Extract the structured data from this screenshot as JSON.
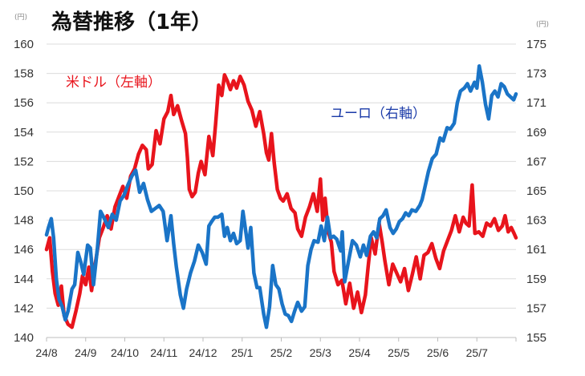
{
  "chart_data": {
    "type": "line",
    "title": "為替推移（1年）",
    "left_unit": "(円)",
    "right_unit": "(円)",
    "y_left": {
      "ylim": [
        140,
        160
      ],
      "ticks": [
        140,
        142,
        144,
        146,
        148,
        150,
        152,
        154,
        156,
        158,
        160
      ]
    },
    "y_right": {
      "ylim": [
        155,
        175
      ],
      "ticks": [
        155,
        157,
        159,
        161,
        163,
        165,
        167,
        169,
        171,
        173,
        175
      ]
    },
    "x_ticks": [
      "24/8",
      "24/9",
      "24/10",
      "24/11",
      "24/12",
      "25/1",
      "25/2",
      "25/3",
      "25/4",
      "25/5",
      "25/6",
      "25/7"
    ],
    "grid": "horizontal",
    "series": [
      {
        "name": "米ドル（左軸）",
        "axis": "left",
        "color": "#e8141c",
        "points": [
          [
            0.0,
            146.0
          ],
          [
            0.08,
            146.8
          ],
          [
            0.15,
            144.5
          ],
          [
            0.22,
            143.0
          ],
          [
            0.3,
            142.2
          ],
          [
            0.38,
            143.5
          ],
          [
            0.45,
            141.5
          ],
          [
            0.55,
            140.9
          ],
          [
            0.65,
            140.7
          ],
          [
            0.75,
            141.8
          ],
          [
            0.85,
            143.0
          ],
          [
            0.92,
            144.2
          ],
          [
            1.0,
            143.6
          ],
          [
            1.08,
            144.8
          ],
          [
            1.15,
            143.2
          ],
          [
            1.25,
            145.1
          ],
          [
            1.35,
            146.8
          ],
          [
            1.45,
            147.5
          ],
          [
            1.55,
            148.3
          ],
          [
            1.65,
            147.4
          ],
          [
            1.75,
            148.9
          ],
          [
            1.85,
            149.6
          ],
          [
            1.95,
            150.3
          ],
          [
            2.05,
            149.5
          ],
          [
            2.15,
            151.0
          ],
          [
            2.25,
            151.5
          ],
          [
            2.35,
            152.5
          ],
          [
            2.45,
            153.1
          ],
          [
            2.55,
            152.8
          ],
          [
            2.6,
            151.5
          ],
          [
            2.7,
            151.8
          ],
          [
            2.8,
            154.1
          ],
          [
            2.9,
            153.2
          ],
          [
            3.0,
            154.9
          ],
          [
            3.1,
            155.4
          ],
          [
            3.18,
            156.5
          ],
          [
            3.25,
            155.2
          ],
          [
            3.35,
            155.8
          ],
          [
            3.45,
            154.8
          ],
          [
            3.55,
            153.9
          ],
          [
            3.6,
            152.3
          ],
          [
            3.65,
            150.1
          ],
          [
            3.72,
            149.6
          ],
          [
            3.8,
            149.9
          ],
          [
            3.88,
            151.2
          ],
          [
            3.95,
            152.0
          ],
          [
            4.05,
            151.1
          ],
          [
            4.15,
            153.7
          ],
          [
            4.25,
            152.4
          ],
          [
            4.32,
            154.5
          ],
          [
            4.4,
            157.2
          ],
          [
            4.48,
            156.5
          ],
          [
            4.55,
            157.9
          ],
          [
            4.62,
            157.5
          ],
          [
            4.7,
            156.9
          ],
          [
            4.78,
            157.5
          ],
          [
            4.86,
            157.0
          ],
          [
            4.95,
            157.8
          ],
          [
            5.05,
            157.2
          ],
          [
            5.15,
            156.1
          ],
          [
            5.25,
            155.5
          ],
          [
            5.35,
            154.4
          ],
          [
            5.45,
            155.4
          ],
          [
            5.55,
            153.9
          ],
          [
            5.62,
            152.6
          ],
          [
            5.68,
            152.1
          ],
          [
            5.75,
            153.9
          ],
          [
            5.82,
            151.9
          ],
          [
            5.9,
            150.1
          ],
          [
            5.98,
            149.5
          ],
          [
            6.05,
            149.3
          ],
          [
            6.15,
            149.8
          ],
          [
            6.25,
            148.8
          ],
          [
            6.35,
            148.5
          ],
          [
            6.42,
            147.4
          ],
          [
            6.52,
            146.9
          ],
          [
            6.62,
            148.2
          ],
          [
            6.72,
            148.9
          ],
          [
            6.82,
            149.8
          ],
          [
            6.92,
            148.6
          ],
          [
            7.0,
            150.8
          ],
          [
            7.06,
            148.0
          ],
          [
            7.12,
            149.5
          ],
          [
            7.2,
            147.2
          ],
          [
            7.28,
            146.5
          ],
          [
            7.35,
            144.5
          ],
          [
            7.45,
            143.6
          ],
          [
            7.55,
            143.9
          ],
          [
            7.65,
            142.3
          ],
          [
            7.75,
            143.7
          ],
          [
            7.85,
            142.0
          ],
          [
            7.95,
            143.1
          ],
          [
            8.05,
            141.7
          ],
          [
            8.15,
            142.9
          ],
          [
            8.22,
            144.8
          ],
          [
            8.3,
            146.8
          ],
          [
            8.4,
            145.7
          ],
          [
            8.5,
            147.8
          ],
          [
            8.58,
            146.5
          ],
          [
            8.65,
            145.2
          ],
          [
            8.75,
            143.6
          ],
          [
            8.85,
            145.0
          ],
          [
            8.95,
            144.4
          ],
          [
            9.05,
            143.8
          ],
          [
            9.15,
            144.7
          ],
          [
            9.25,
            143.2
          ],
          [
            9.35,
            144.3
          ],
          [
            9.45,
            145.5
          ],
          [
            9.55,
            144.0
          ],
          [
            9.65,
            145.6
          ],
          [
            9.75,
            145.8
          ],
          [
            9.85,
            146.4
          ],
          [
            9.95,
            145.4
          ],
          [
            10.05,
            144.7
          ],
          [
            10.15,
            145.9
          ],
          [
            10.25,
            146.6
          ],
          [
            10.35,
            147.3
          ],
          [
            10.45,
            148.3
          ],
          [
            10.55,
            147.2
          ],
          [
            10.65,
            148.2
          ],
          [
            10.72,
            147.8
          ],
          [
            10.8,
            147.6
          ],
          [
            10.88,
            150.4
          ],
          [
            10.95,
            147.1
          ],
          [
            11.05,
            147.2
          ],
          [
            11.15,
            146.9
          ],
          [
            11.25,
            147.8
          ],
          [
            11.35,
            147.6
          ],
          [
            11.45,
            148.1
          ],
          [
            11.55,
            147.3
          ],
          [
            11.65,
            147.6
          ],
          [
            11.72,
            148.3
          ],
          [
            11.8,
            147.2
          ],
          [
            11.88,
            147.5
          ],
          [
            11.95,
            147.1
          ],
          [
            12.0,
            146.8
          ]
        ]
      },
      {
        "name": "ユーロ（右軸）",
        "axis": "right",
        "color": "#1a74c7",
        "points": [
          [
            0.0,
            162.0
          ],
          [
            0.05,
            162.5
          ],
          [
            0.12,
            163.1
          ],
          [
            0.18,
            161.8
          ],
          [
            0.25,
            159.0
          ],
          [
            0.32,
            157.6
          ],
          [
            0.4,
            157.1
          ],
          [
            0.48,
            156.2
          ],
          [
            0.55,
            156.8
          ],
          [
            0.65,
            158.3
          ],
          [
            0.72,
            158.6
          ],
          [
            0.8,
            160.8
          ],
          [
            0.88,
            160.1
          ],
          [
            0.95,
            159.3
          ],
          [
            1.05,
            161.3
          ],
          [
            1.12,
            161.1
          ],
          [
            1.2,
            158.6
          ],
          [
            1.3,
            161.1
          ],
          [
            1.38,
            163.6
          ],
          [
            1.48,
            163.1
          ],
          [
            1.58,
            162.5
          ],
          [
            1.68,
            163.4
          ],
          [
            1.78,
            163.0
          ],
          [
            1.88,
            164.3
          ],
          [
            1.98,
            164.7
          ],
          [
            2.08,
            165.4
          ],
          [
            2.18,
            166.0
          ],
          [
            2.28,
            166.4
          ],
          [
            2.38,
            164.9
          ],
          [
            2.48,
            165.5
          ],
          [
            2.58,
            164.4
          ],
          [
            2.68,
            163.6
          ],
          [
            2.78,
            163.8
          ],
          [
            2.88,
            164.0
          ],
          [
            2.98,
            163.6
          ],
          [
            3.08,
            161.6
          ],
          [
            3.18,
            163.3
          ],
          [
            3.25,
            161.4
          ],
          [
            3.32,
            159.8
          ],
          [
            3.42,
            157.9
          ],
          [
            3.5,
            157.0
          ],
          [
            3.58,
            158.3
          ],
          [
            3.68,
            159.4
          ],
          [
            3.78,
            160.2
          ],
          [
            3.88,
            161.3
          ],
          [
            3.98,
            160.8
          ],
          [
            4.08,
            160.0
          ],
          [
            4.15,
            162.6
          ],
          [
            4.22,
            162.9
          ],
          [
            4.3,
            163.2
          ],
          [
            4.38,
            163.2
          ],
          [
            4.48,
            163.4
          ],
          [
            4.55,
            161.9
          ],
          [
            4.62,
            162.5
          ],
          [
            4.7,
            161.6
          ],
          [
            4.78,
            162.1
          ],
          [
            4.86,
            161.4
          ],
          [
            4.95,
            161.6
          ],
          [
            5.02,
            163.6
          ],
          [
            5.08,
            162.5
          ],
          [
            5.15,
            161.1
          ],
          [
            5.22,
            162.5
          ],
          [
            5.3,
            159.4
          ],
          [
            5.38,
            158.4
          ],
          [
            5.45,
            158.4
          ],
          [
            5.55,
            156.6
          ],
          [
            5.62,
            155.7
          ],
          [
            5.7,
            157.1
          ],
          [
            5.78,
            159.9
          ],
          [
            5.86,
            158.6
          ],
          [
            5.94,
            158.3
          ],
          [
            6.02,
            157.3
          ],
          [
            6.1,
            156.6
          ],
          [
            6.18,
            156.5
          ],
          [
            6.26,
            156.1
          ],
          [
            6.34,
            156.8
          ],
          [
            6.42,
            157.4
          ],
          [
            6.52,
            156.8
          ],
          [
            6.6,
            157.1
          ],
          [
            6.68,
            159.9
          ],
          [
            6.76,
            161.0
          ],
          [
            6.84,
            161.6
          ],
          [
            6.94,
            161.5
          ],
          [
            7.02,
            162.6
          ],
          [
            7.1,
            161.6
          ],
          [
            7.18,
            163.2
          ],
          [
            7.26,
            161.8
          ],
          [
            7.34,
            161.9
          ],
          [
            7.42,
            161.7
          ],
          [
            7.52,
            160.9
          ],
          [
            7.56,
            162.2
          ],
          [
            7.62,
            158.8
          ],
          [
            7.72,
            160.2
          ],
          [
            7.82,
            161.6
          ],
          [
            7.92,
            161.3
          ],
          [
            8.02,
            160.5
          ],
          [
            8.1,
            161.3
          ],
          [
            8.18,
            160.6
          ],
          [
            8.28,
            161.9
          ],
          [
            8.36,
            162.2
          ],
          [
            8.44,
            161.8
          ],
          [
            8.52,
            163.1
          ],
          [
            8.6,
            163.3
          ],
          [
            8.68,
            163.7
          ],
          [
            8.78,
            162.5
          ],
          [
            8.86,
            162.1
          ],
          [
            8.94,
            162.4
          ],
          [
            9.02,
            162.9
          ],
          [
            9.1,
            163.1
          ],
          [
            9.18,
            163.5
          ],
          [
            9.26,
            163.3
          ],
          [
            9.34,
            163.7
          ],
          [
            9.44,
            163.6
          ],
          [
            9.54,
            164.0
          ],
          [
            9.6,
            164.4
          ],
          [
            9.66,
            165.1
          ],
          [
            9.76,
            166.3
          ],
          [
            9.86,
            167.2
          ],
          [
            9.96,
            167.5
          ],
          [
            10.06,
            168.6
          ],
          [
            10.14,
            168.4
          ],
          [
            10.24,
            169.3
          ],
          [
            10.32,
            169.2
          ],
          [
            10.42,
            169.6
          ],
          [
            10.5,
            171.0
          ],
          [
            10.58,
            171.8
          ],
          [
            10.68,
            172.0
          ],
          [
            10.76,
            172.3
          ],
          [
            10.84,
            171.8
          ],
          [
            10.94,
            172.4
          ],
          [
            11.0,
            172.0
          ],
          [
            11.06,
            173.5
          ],
          [
            11.14,
            172.4
          ],
          [
            11.22,
            170.9
          ],
          [
            11.3,
            169.9
          ],
          [
            11.38,
            171.5
          ],
          [
            11.46,
            171.8
          ],
          [
            11.54,
            171.4
          ],
          [
            11.62,
            172.3
          ],
          [
            11.7,
            172.1
          ],
          [
            11.78,
            171.6
          ],
          [
            11.86,
            171.4
          ],
          [
            11.94,
            171.2
          ],
          [
            12.0,
            171.6
          ]
        ]
      }
    ]
  }
}
